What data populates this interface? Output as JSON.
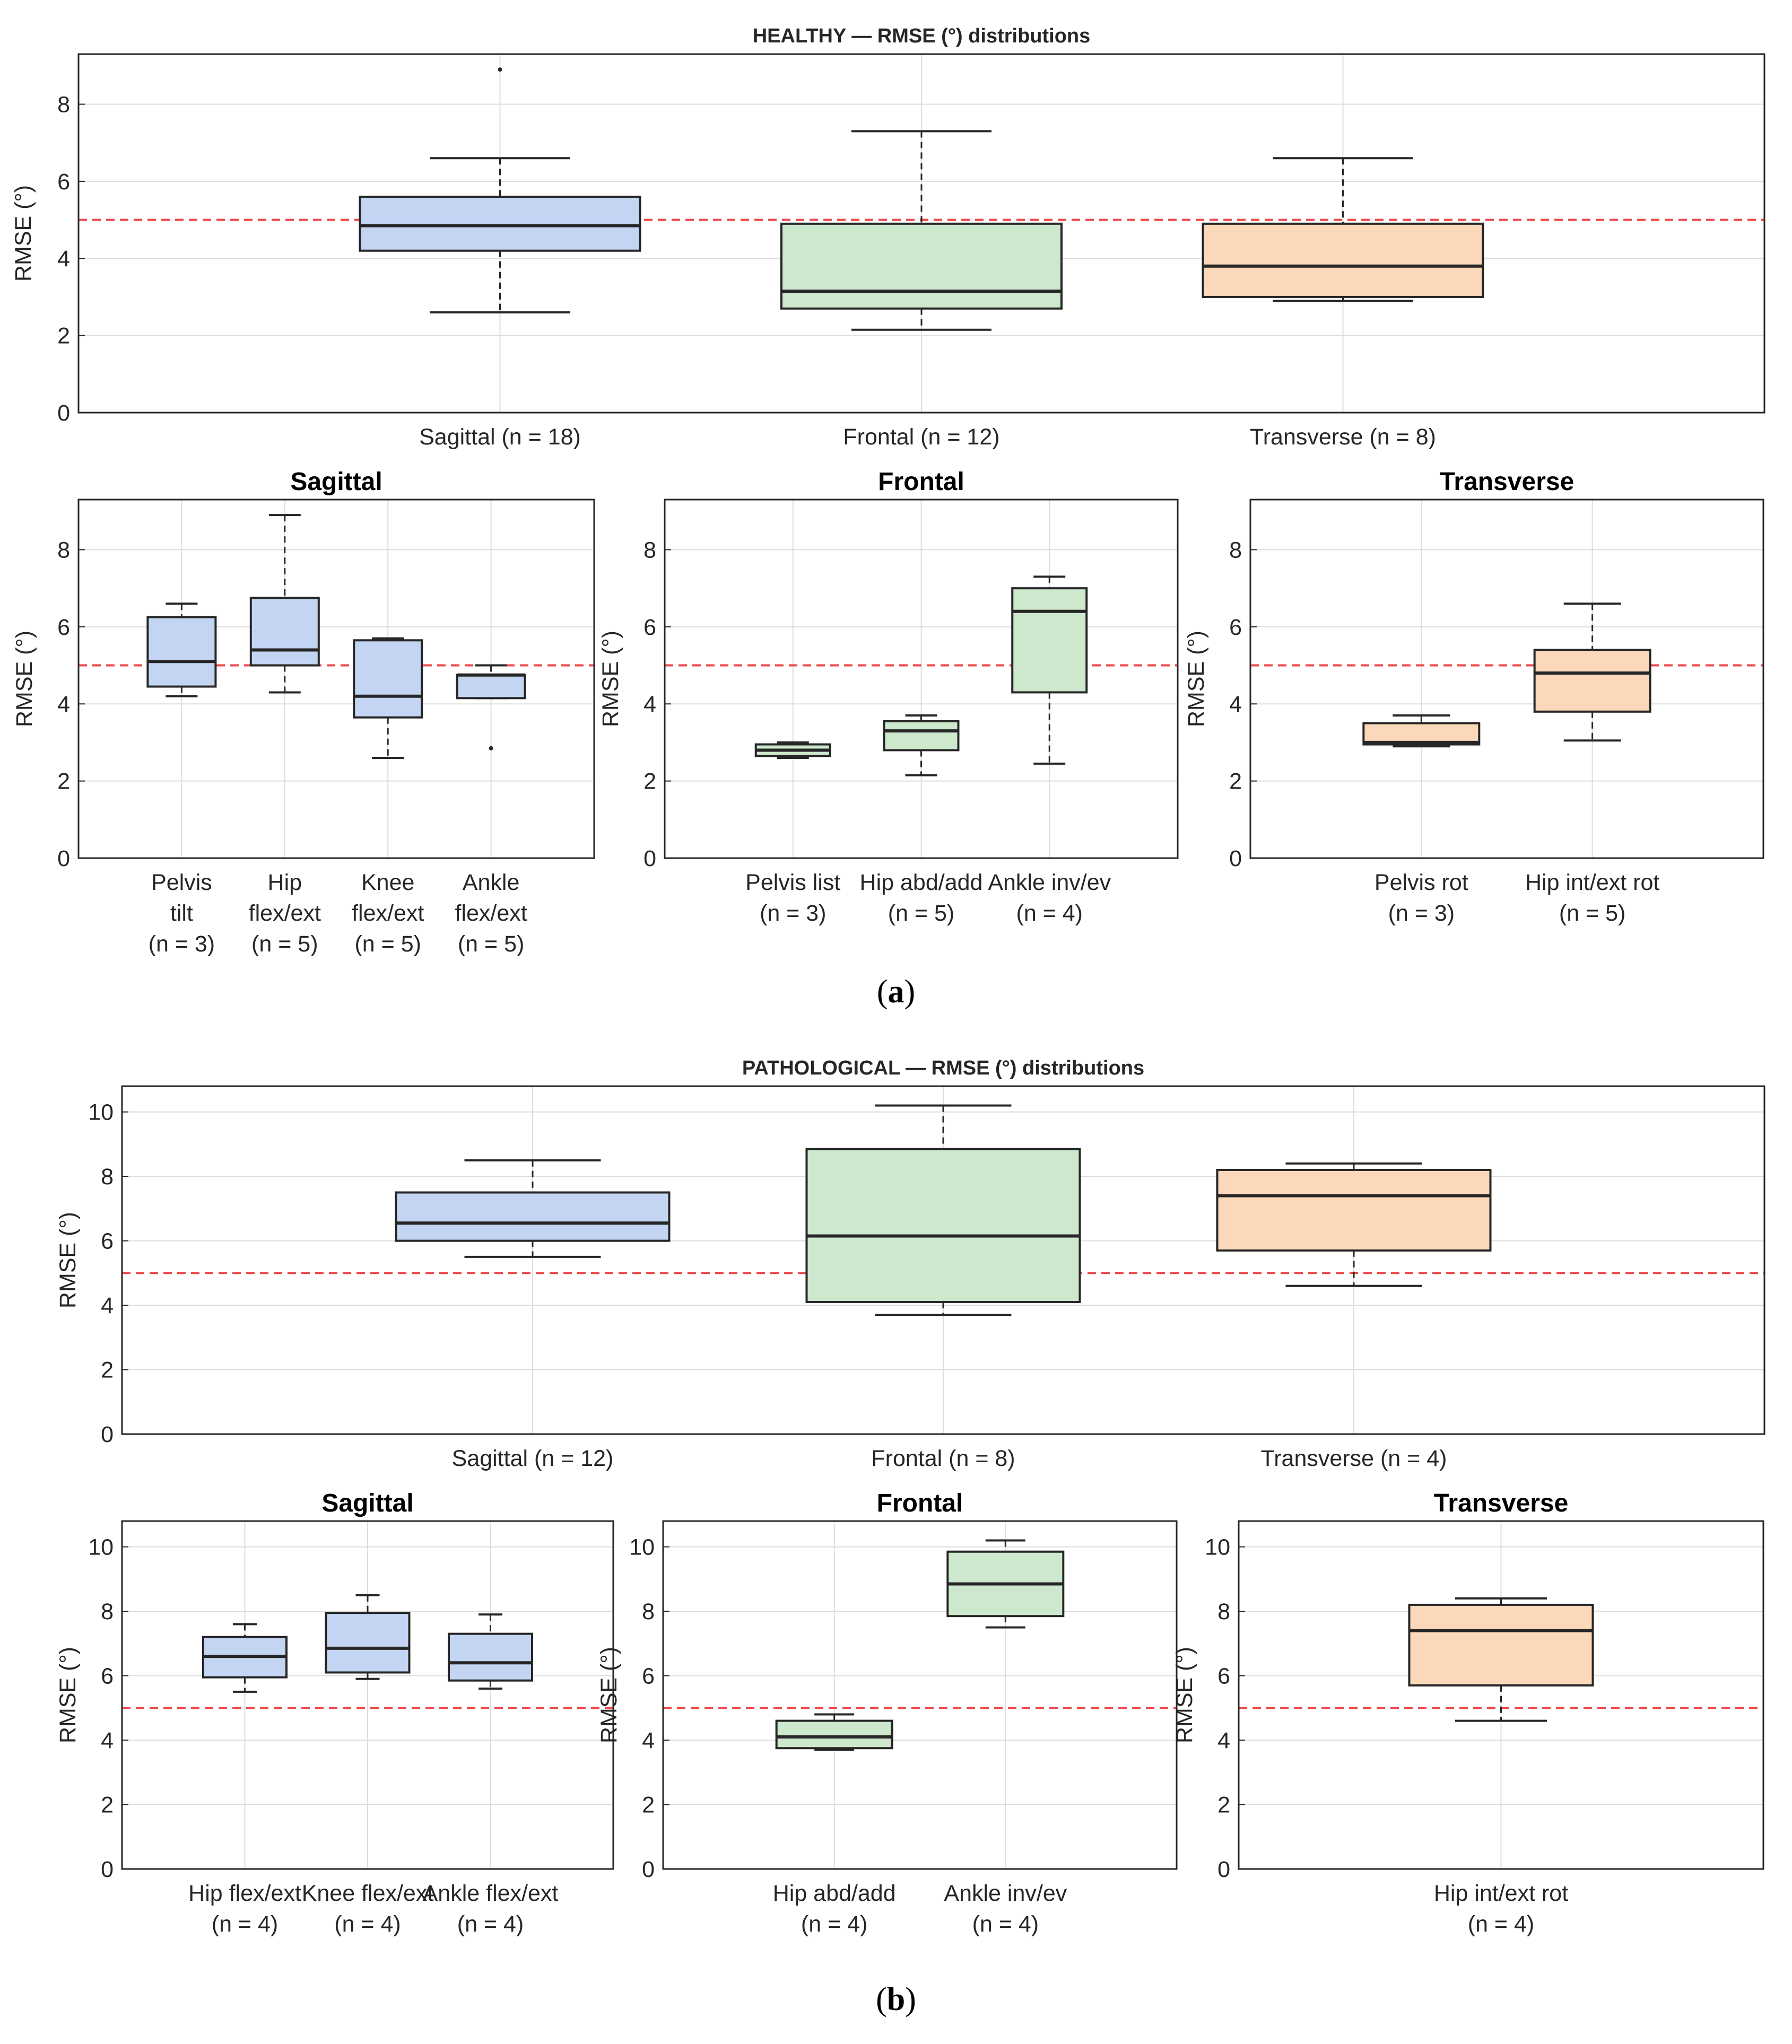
{
  "figure": {
    "caption_a": "a",
    "caption_b": "b"
  },
  "colors": {
    "sagittal_fill": "#c3d5f3",
    "frontal_fill": "#cde8cd",
    "transverse_fill": "#fad8b9",
    "box_edge": "#262626",
    "threshold": "#f04848",
    "grid": "#dddddd",
    "axis": "#262626"
  },
  "chart_data": [
    {
      "id": "healthy-overview",
      "type": "box",
      "title": "HEALTHY — RMSE (°) distributions",
      "ylabel": "RMSE (°)",
      "ylim": [
        0,
        9.3
      ],
      "yticks": [
        0,
        2,
        4,
        6,
        8
      ],
      "threshold": 5,
      "categories": [
        {
          "label": [
            "Sagittal (n = 18)"
          ],
          "plane": "sagittal",
          "min": 2.6,
          "q1": 4.2,
          "median": 4.85,
          "q3": 5.6,
          "max": 6.6,
          "outliers": [
            8.9
          ]
        },
        {
          "label": [
            "Frontal (n = 12)"
          ],
          "plane": "frontal",
          "min": 2.15,
          "q1": 2.7,
          "median": 3.15,
          "q3": 4.9,
          "max": 7.3,
          "outliers": []
        },
        {
          "label": [
            "Transverse (n = 8)"
          ],
          "plane": "transverse",
          "min": 2.9,
          "q1": 3.0,
          "median": 3.8,
          "q3": 4.9,
          "max": 6.6,
          "outliers": []
        }
      ]
    },
    {
      "id": "healthy-sagittal",
      "type": "box",
      "title": "Sagittal",
      "ylabel": "RMSE (°)",
      "ylim": [
        0,
        9.3
      ],
      "yticks": [
        0,
        2,
        4,
        6,
        8
      ],
      "threshold": 5,
      "categories": [
        {
          "label": [
            "Pelvis",
            "tilt",
            "(n = 3)"
          ],
          "plane": "sagittal",
          "min": 4.2,
          "q1": 4.45,
          "median": 5.1,
          "q3": 6.25,
          "max": 6.6,
          "outliers": []
        },
        {
          "label": [
            "Hip",
            "flex/ext",
            "(n = 5)"
          ],
          "plane": "sagittal",
          "min": 4.3,
          "q1": 5.0,
          "median": 5.4,
          "q3": 6.75,
          "max": 8.9,
          "outliers": []
        },
        {
          "label": [
            "Knee",
            "flex/ext",
            "(n = 5)"
          ],
          "plane": "sagittal",
          "min": 2.6,
          "q1": 3.65,
          "median": 4.2,
          "q3": 5.65,
          "max": 5.7,
          "outliers": []
        },
        {
          "label": [
            "Ankle",
            "flex/ext",
            "(n = 5)"
          ],
          "plane": "sagittal",
          "min": 4.15,
          "q1": 4.15,
          "median": 4.75,
          "q3": 4.75,
          "max": 5.0,
          "outliers": [
            2.85
          ]
        }
      ]
    },
    {
      "id": "healthy-frontal",
      "type": "box",
      "title": "Frontal",
      "ylabel": "RMSE (°)",
      "ylim": [
        0,
        9.3
      ],
      "yticks": [
        0,
        2,
        4,
        6,
        8
      ],
      "threshold": 5,
      "categories": [
        {
          "label": [
            "Pelvis list",
            "(n = 3)"
          ],
          "plane": "frontal",
          "min": 2.6,
          "q1": 2.65,
          "median": 2.8,
          "q3": 2.95,
          "max": 3.0,
          "outliers": []
        },
        {
          "label": [
            "Hip abd/add",
            "(n = 5)"
          ],
          "plane": "frontal",
          "min": 2.15,
          "q1": 2.8,
          "median": 3.3,
          "q3": 3.55,
          "max": 3.7,
          "outliers": []
        },
        {
          "label": [
            "Ankle inv/ev",
            "(n = 4)"
          ],
          "plane": "frontal",
          "min": 2.45,
          "q1": 4.3,
          "median": 6.4,
          "q3": 7.0,
          "max": 7.3,
          "outliers": []
        }
      ]
    },
    {
      "id": "healthy-transverse",
      "type": "box",
      "title": "Transverse",
      "ylabel": "RMSE (°)",
      "ylim": [
        0,
        9.3
      ],
      "yticks": [
        0,
        2,
        4,
        6,
        8
      ],
      "threshold": 5,
      "categories": [
        {
          "label": [
            "Pelvis rot",
            "(n = 3)"
          ],
          "plane": "transverse",
          "min": 2.9,
          "q1": 2.95,
          "median": 3.0,
          "q3": 3.5,
          "max": 3.7,
          "outliers": []
        },
        {
          "label": [
            "Hip int/ext rot",
            "(n = 5)"
          ],
          "plane": "transverse",
          "min": 3.05,
          "q1": 3.8,
          "median": 4.8,
          "q3": 5.4,
          "max": 6.6,
          "outliers": []
        }
      ]
    },
    {
      "id": "patho-overview",
      "type": "box",
      "title": "PATHOLOGICAL — RMSE (°) distributions",
      "ylabel": "RMSE (°)",
      "ylim": [
        0,
        10.8
      ],
      "yticks": [
        0,
        2,
        4,
        6,
        8,
        10
      ],
      "threshold": 5,
      "categories": [
        {
          "label": [
            "Sagittal (n = 12)"
          ],
          "plane": "sagittal",
          "min": 5.5,
          "q1": 6.0,
          "median": 6.55,
          "q3": 7.5,
          "max": 8.5,
          "outliers": []
        },
        {
          "label": [
            "Frontal (n = 8)"
          ],
          "plane": "frontal",
          "min": 3.7,
          "q1": 4.1,
          "median": 6.15,
          "q3": 8.85,
          "max": 10.2,
          "outliers": []
        },
        {
          "label": [
            "Transverse (n = 4)"
          ],
          "plane": "transverse",
          "min": 4.6,
          "q1": 5.7,
          "median": 7.4,
          "q3": 8.2,
          "max": 8.4,
          "outliers": []
        }
      ]
    },
    {
      "id": "patho-sagittal",
      "type": "box",
      "title": "Sagittal",
      "ylabel": "RMSE (°)",
      "ylim": [
        0,
        10.8
      ],
      "yticks": [
        0,
        2,
        4,
        6,
        8,
        10
      ],
      "threshold": 5,
      "categories": [
        {
          "label": [
            "Hip flex/ext",
            "(n = 4)"
          ],
          "plane": "sagittal",
          "min": 5.5,
          "q1": 5.95,
          "median": 6.6,
          "q3": 7.2,
          "max": 7.6,
          "outliers": []
        },
        {
          "label": [
            "Knee flex/ext",
            "(n = 4)"
          ],
          "plane": "sagittal",
          "min": 5.9,
          "q1": 6.1,
          "median": 6.85,
          "q3": 7.95,
          "max": 8.5,
          "outliers": []
        },
        {
          "label": [
            "Ankle flex/ext",
            "(n = 4)"
          ],
          "plane": "sagittal",
          "min": 5.6,
          "q1": 5.85,
          "median": 6.4,
          "q3": 7.3,
          "max": 7.9,
          "outliers": []
        }
      ]
    },
    {
      "id": "patho-frontal",
      "type": "box",
      "title": "Frontal",
      "ylabel": "RMSE (°)",
      "ylim": [
        0,
        10.8
      ],
      "yticks": [
        0,
        2,
        4,
        6,
        8,
        10
      ],
      "threshold": 5,
      "categories": [
        {
          "label": [
            "Hip abd/add",
            "(n = 4)"
          ],
          "plane": "frontal",
          "min": 3.7,
          "q1": 3.75,
          "median": 4.1,
          "q3": 4.6,
          "max": 4.8,
          "outliers": []
        },
        {
          "label": [
            "Ankle inv/ev",
            "(n = 4)"
          ],
          "plane": "frontal",
          "min": 7.5,
          "q1": 7.85,
          "median": 8.85,
          "q3": 9.85,
          "max": 10.2,
          "outliers": []
        }
      ]
    },
    {
      "id": "patho-transverse",
      "type": "box",
      "title": "Transverse",
      "ylabel": "RMSE (°)",
      "ylim": [
        0,
        10.8
      ],
      "yticks": [
        0,
        2,
        4,
        6,
        8,
        10
      ],
      "threshold": 5,
      "categories": [
        {
          "label": [
            "Hip int/ext rot",
            "(n = 4)"
          ],
          "plane": "transverse",
          "min": 4.6,
          "q1": 5.7,
          "median": 7.4,
          "q3": 8.2,
          "max": 8.4,
          "outliers": []
        }
      ]
    }
  ]
}
